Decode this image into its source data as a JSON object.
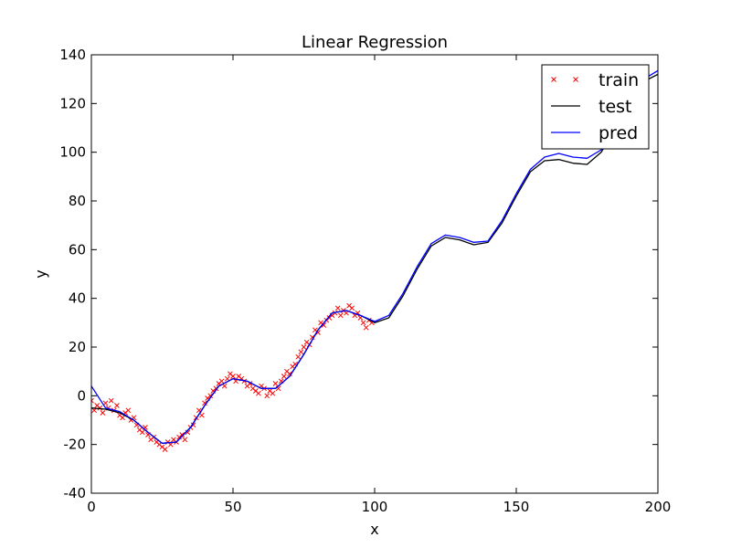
{
  "chart_data": {
    "type": "line",
    "title": "Linear Regression",
    "xlabel": "x",
    "ylabel": "y",
    "xlim": [
      0,
      200
    ],
    "ylim": [
      -40,
      140
    ],
    "xticks": [
      0,
      50,
      100,
      150,
      200
    ],
    "yticks": [
      -40,
      -20,
      0,
      20,
      40,
      60,
      80,
      100,
      120,
      140
    ],
    "grid": false,
    "legend_position": "upper right",
    "colors": {
      "train": "#ff0000",
      "test": "#000000",
      "pred": "#0000ff"
    },
    "series": [
      {
        "name": "train",
        "kind": "scatter",
        "marker": "x",
        "x": [
          0,
          1,
          2,
          3,
          4,
          5,
          6,
          7,
          8,
          9,
          10,
          11,
          12,
          13,
          14,
          15,
          16,
          17,
          18,
          19,
          20,
          21,
          22,
          23,
          24,
          25,
          26,
          27,
          28,
          29,
          30,
          31,
          32,
          33,
          34,
          35,
          36,
          37,
          38,
          39,
          40,
          41,
          42,
          43,
          44,
          45,
          46,
          47,
          48,
          49,
          50,
          51,
          52,
          53,
          54,
          55,
          56,
          57,
          58,
          59,
          60,
          61,
          62,
          63,
          64,
          65,
          66,
          67,
          68,
          69,
          70,
          71,
          72,
          73,
          74,
          75,
          76,
          77,
          78,
          79,
          80,
          81,
          82,
          83,
          84,
          85,
          86,
          87,
          88,
          89,
          90,
          91,
          92,
          93,
          94,
          95,
          96,
          97,
          98,
          99
        ],
        "y": [
          -2,
          -6,
          -4,
          -5,
          -7,
          -3,
          -5,
          -2,
          -6,
          -4,
          -8,
          -9,
          -7,
          -6,
          -10,
          -9,
          -12,
          -14,
          -15,
          -13,
          -16,
          -18,
          -17,
          -19,
          -20,
          -21,
          -22,
          -19,
          -20,
          -18,
          -19,
          -17,
          -16,
          -18,
          -15,
          -13,
          -12,
          -9,
          -6,
          -8,
          -3,
          -1,
          0,
          2,
          3,
          5,
          6,
          4,
          7,
          9,
          8,
          6,
          8,
          7,
          6,
          4,
          5,
          3,
          2,
          1,
          4,
          3,
          0,
          2,
          1,
          5,
          3,
          6,
          8,
          10,
          9,
          12,
          13,
          16,
          18,
          20,
          22,
          21,
          24,
          27,
          26,
          30,
          29,
          31,
          32,
          33,
          34,
          36,
          33,
          35,
          34,
          37,
          36,
          33,
          34,
          32,
          30,
          28,
          31,
          30
        ]
      },
      {
        "name": "test",
        "kind": "line",
        "x": [
          0,
          5,
          10,
          15,
          20,
          25,
          30,
          35,
          40,
          45,
          50,
          55,
          60,
          65,
          70,
          75,
          80,
          85,
          90,
          95,
          100,
          105,
          110,
          115,
          120,
          125,
          130,
          135,
          140,
          145,
          150,
          155,
          160,
          165,
          170,
          175,
          180,
          185,
          190,
          195,
          200
        ],
        "y": [
          -5,
          -5.5,
          -7,
          -10,
          -15,
          -19.5,
          -19,
          -13,
          -4,
          4,
          7,
          6,
          3,
          3,
          8,
          17,
          27,
          34,
          35,
          33,
          30,
          32,
          41,
          52,
          61.5,
          65,
          64,
          62,
          63,
          71,
          82,
          92,
          96.5,
          97,
          95.5,
          95,
          100,
          110,
          121,
          129,
          132
        ]
      },
      {
        "name": "pred",
        "kind": "line",
        "x": [
          0,
          5,
          10,
          15,
          20,
          25,
          30,
          35,
          40,
          45,
          50,
          55,
          60,
          65,
          70,
          75,
          80,
          85,
          90,
          95,
          100,
          105,
          110,
          115,
          120,
          125,
          130,
          135,
          140,
          145,
          150,
          155,
          160,
          165,
          170,
          175,
          180,
          185,
          190,
          195,
          200
        ],
        "y": [
          4,
          -5,
          -6.5,
          -10,
          -15,
          -19.5,
          -19,
          -13,
          -4,
          4,
          7,
          6,
          3,
          3,
          8,
          17,
          27,
          34,
          35,
          33,
          30.5,
          33,
          42,
          53,
          62.5,
          66,
          65,
          63,
          63.5,
          72,
          83,
          93,
          98,
          99.5,
          98,
          97.5,
          101,
          111,
          122,
          130,
          133.5
        ]
      }
    ]
  }
}
